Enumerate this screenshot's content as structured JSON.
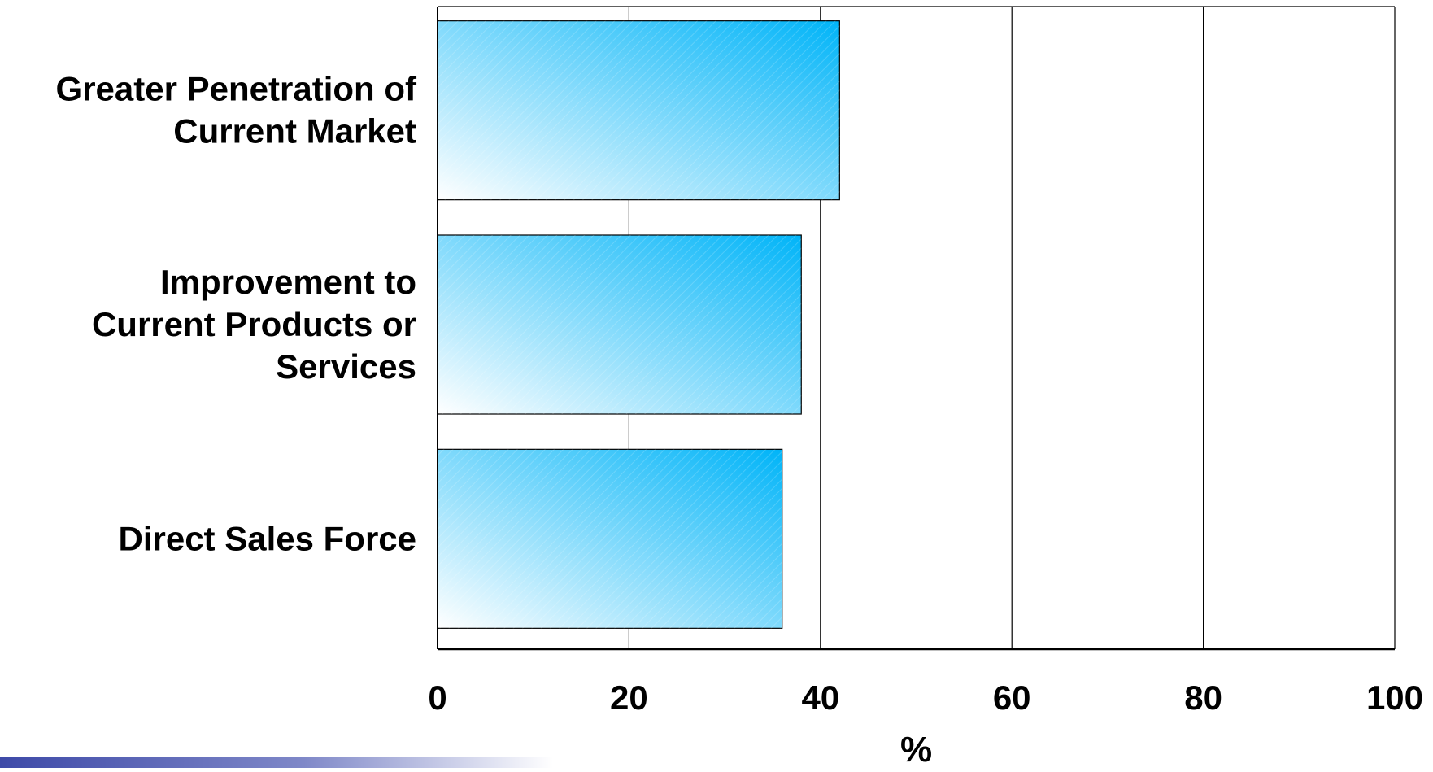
{
  "chart_data": {
    "type": "bar",
    "orientation": "horizontal",
    "categories": [
      [
        "Greater Penetration of",
        "Current Market"
      ],
      [
        "Improvement to",
        "Current Products or",
        "Services"
      ],
      [
        "Direct Sales Force"
      ]
    ],
    "values": [
      42,
      38,
      36
    ],
    "xlabel": "%",
    "xlim": [
      0,
      100
    ],
    "xticks": [
      "0",
      "20",
      "40",
      "60",
      "80",
      "100"
    ],
    "grid": true,
    "legend": "none",
    "colors": {
      "bar_light": "#ffffff",
      "bar_dark": "#00b4f8",
      "grid": "#000000",
      "band": "#3e4aa8"
    }
  }
}
